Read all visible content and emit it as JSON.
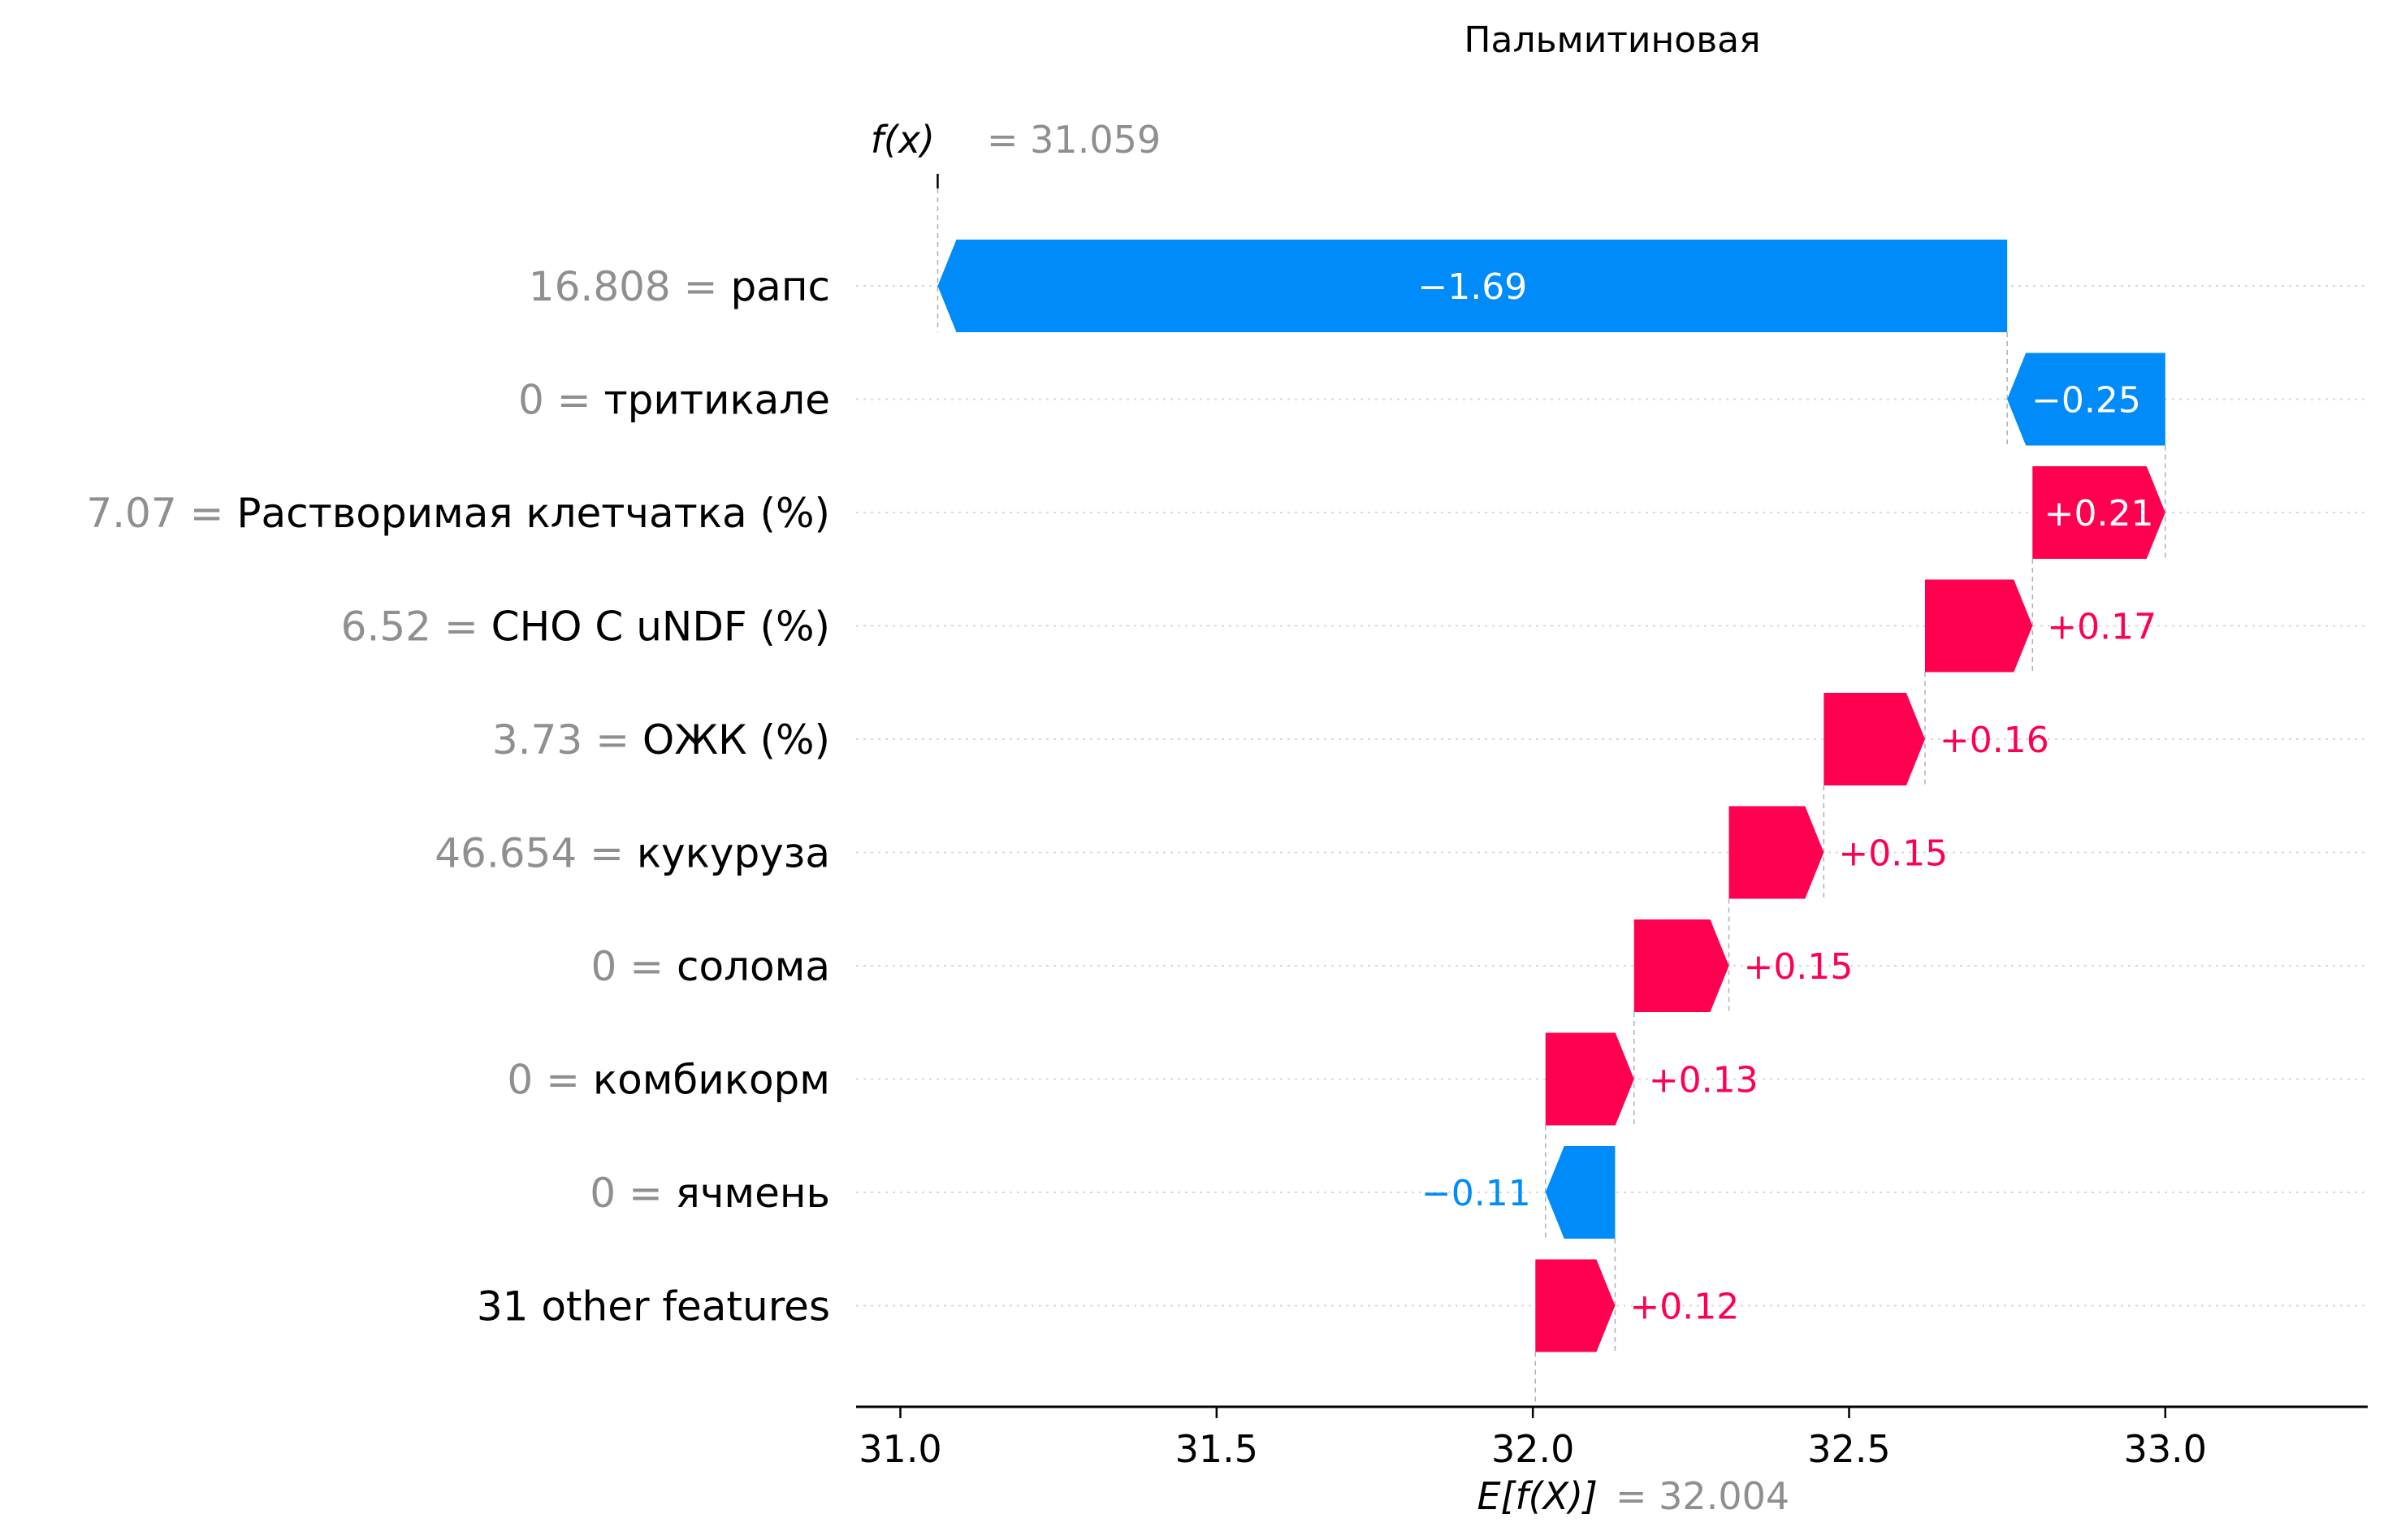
{
  "chart_data": {
    "type": "waterfall",
    "title": "Пальмитиновая",
    "fx": {
      "label_math": "f(x)",
      "label_value": "= 31.059",
      "value": 31.059
    },
    "base": {
      "label_math": "E[f(X)]",
      "label_value": "= 32.004",
      "value": 32.004
    },
    "xlim": [
      30.93,
      33.32
    ],
    "xticks": [
      31.0,
      31.5,
      32.0,
      32.5,
      33.0
    ],
    "xtick_labels": [
      "31.0",
      "31.5",
      "32.0",
      "32.5",
      "33.0"
    ],
    "grid": "horizontal dotted",
    "colors": {
      "positive": "#ff0051",
      "negative": "#008bfb",
      "value_gray": "#8f8f8f"
    },
    "features": [
      {
        "value": "16.808",
        "name": "рапс",
        "shap": -1.69,
        "start": 32.75,
        "end": 31.059,
        "label": "−1.69"
      },
      {
        "value": "0",
        "name": "тритикале",
        "shap": -0.25,
        "start": 33.0,
        "end": 32.75,
        "label": "−0.25"
      },
      {
        "value": "7.07",
        "name": "Растворимая клетчатка (%)",
        "shap": 0.21,
        "start": 32.79,
        "end": 33.0,
        "label": "+0.21"
      },
      {
        "value": "6.52",
        "name": "CHO C uNDF (%)",
        "shap": 0.17,
        "start": 32.62,
        "end": 32.79,
        "label": "+0.17"
      },
      {
        "value": "3.73",
        "name": "ОЖК (%)",
        "shap": 0.16,
        "start": 32.46,
        "end": 32.62,
        "label": "+0.16"
      },
      {
        "value": "46.654",
        "name": "кукуруза",
        "shap": 0.15,
        "start": 32.31,
        "end": 32.46,
        "label": "+0.15"
      },
      {
        "value": "0",
        "name": "солома",
        "shap": 0.15,
        "start": 32.16,
        "end": 32.31,
        "label": "+0.15"
      },
      {
        "value": "0",
        "name": "комбикорм",
        "shap": 0.13,
        "start": 32.02,
        "end": 32.16,
        "label": "+0.13"
      },
      {
        "value": "0",
        "name": "ячмень",
        "shap": -0.11,
        "start": 32.13,
        "end": 32.02,
        "label": "−0.11"
      },
      {
        "value": "",
        "name": "31 other features",
        "shap": 0.12,
        "start": 32.004,
        "end": 32.13,
        "label": "+0.12"
      }
    ]
  }
}
